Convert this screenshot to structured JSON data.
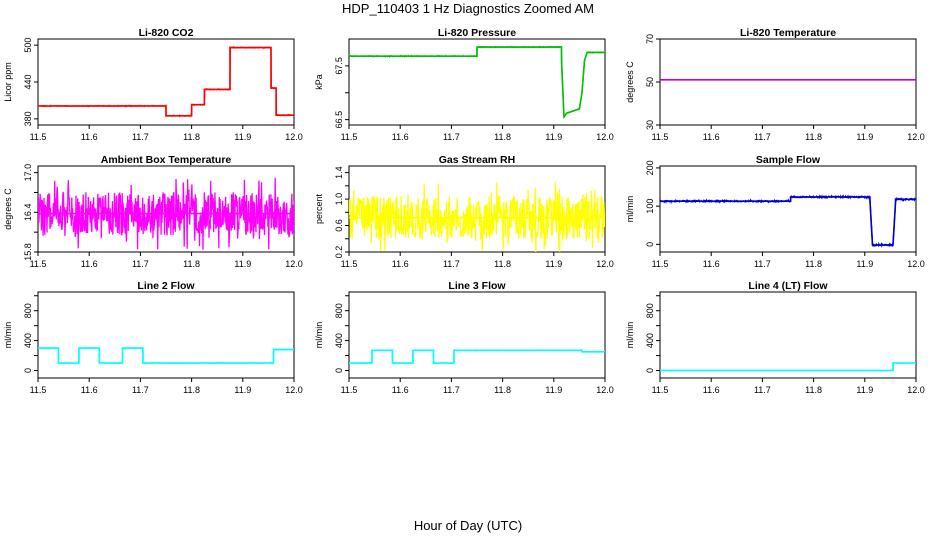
{
  "title": "HDP_110403  1 Hz Diagnostics Zoomed AM",
  "xlabel": "Hour of Day (UTC)",
  "chart_data": [
    {
      "type": "line",
      "title": "Li-820 CO2",
      "ylabel": "Licor ppm",
      "color": "#ff0000",
      "xlim": [
        11.5,
        12.0
      ],
      "ylim": [
        370,
        510
      ],
      "yticks": [
        "380",
        "440",
        "500"
      ],
      "ytick_values": [
        380,
        440,
        500
      ],
      "xticks": [
        "11.5",
        "11.6",
        "11.7",
        "11.8",
        "11.9",
        "12.0"
      ],
      "noise": 0.8,
      "series": [
        {
          "name": "CO2",
          "x": [
            11.5,
            11.75,
            11.75,
            11.8,
            11.8,
            11.825,
            11.825,
            11.875,
            11.875,
            11.955,
            11.955,
            11.965,
            11.965,
            12.0
          ],
          "y": [
            401,
            401,
            385,
            385,
            403,
            403,
            428,
            428,
            496,
            496,
            430,
            430,
            386,
            386
          ]
        }
      ]
    },
    {
      "type": "line",
      "title": "Li-820 Pressure",
      "ylabel": "kPa",
      "color": "#00c000",
      "xlim": [
        11.5,
        12.0
      ],
      "ylim": [
        66.4,
        68.0
      ],
      "yticks": [
        "66.5",
        "67.5"
      ],
      "ytick_values": [
        66.5,
        67.0,
        67.5
      ],
      "xticks": [
        "11.5",
        "11.6",
        "11.7",
        "11.8",
        "11.9",
        "12.0"
      ],
      "noise": 0.01,
      "series": [
        {
          "name": "Pressure",
          "x": [
            11.5,
            11.75,
            11.75,
            11.915,
            11.915,
            11.92,
            11.925,
            11.95,
            11.955,
            11.96,
            11.965,
            12.0
          ],
          "y": [
            67.68,
            67.68,
            67.85,
            67.85,
            67.6,
            66.55,
            66.62,
            66.7,
            67.0,
            67.6,
            67.75,
            67.75
          ]
        }
      ]
    },
    {
      "type": "line",
      "title": "Li-820 Temperature",
      "ylabel": "degrees C",
      "color": "#cc00cc",
      "xlim": [
        11.5,
        12.0
      ],
      "ylim": [
        30,
        70
      ],
      "yticks": [
        "30",
        "50",
        "70"
      ],
      "ytick_values": [
        30,
        50,
        70
      ],
      "xticks": [
        "11.5",
        "11.6",
        "11.7",
        "11.8",
        "11.9",
        "12.0"
      ],
      "noise": 0,
      "series": [
        {
          "name": "Temperature",
          "x": [
            11.5,
            12.0
          ],
          "y": [
            51,
            51
          ]
        }
      ]
    },
    {
      "type": "line",
      "title": "Ambient Box Temperature",
      "ylabel": "degrees C",
      "color": "#ff00ff",
      "xlim": [
        11.5,
        12.0
      ],
      "ylim": [
        15.8,
        17.1
      ],
      "yticks": [
        "15.8",
        "16.4",
        "17.0"
      ],
      "ytick_values": [
        15.8,
        16.1,
        16.4,
        16.7,
        17.0
      ],
      "xticks": [
        "11.5",
        "11.6",
        "11.7",
        "11.8",
        "11.9",
        "12.0"
      ],
      "noise": 0.55,
      "series": [
        {
          "name": "Ambient",
          "x": [
            11.5,
            12.0
          ],
          "y": [
            16.38,
            16.38
          ]
        }
      ]
    },
    {
      "type": "line",
      "title": "Gas Stream RH",
      "ylabel": "percent",
      "color": "#ffff00",
      "xlim": [
        11.5,
        12.0
      ],
      "ylim": [
        0.2,
        1.5
      ],
      "yticks": [
        "0.2",
        "0.6",
        "1.0",
        "1.4"
      ],
      "ytick_values": [
        0.2,
        0.4,
        0.6,
        0.8,
        1.0,
        1.2,
        1.4
      ],
      "xticks": [
        "11.5",
        "11.6",
        "11.7",
        "11.8",
        "11.9",
        "12.0"
      ],
      "noise": 0.55,
      "series": [
        {
          "name": "RH",
          "x": [
            11.5,
            12.0
          ],
          "y": [
            0.72,
            0.72
          ]
        }
      ]
    },
    {
      "type": "line",
      "title": "Sample Flow",
      "ylabel": "ml/min",
      "color": "#0000cc",
      "xlim": [
        11.5,
        12.0
      ],
      "ylim": [
        -20,
        205
      ],
      "yticks": [
        "0",
        "100",
        "200"
      ],
      "ytick_values": [
        0,
        100,
        200
      ],
      "xticks": [
        "11.5",
        "11.6",
        "11.7",
        "11.8",
        "11.9",
        "12.0"
      ],
      "noise": 3,
      "series": [
        {
          "name": "Sample Flow",
          "x": [
            11.5,
            11.755,
            11.755,
            11.91,
            11.91,
            11.915,
            11.955,
            11.96,
            11.96,
            12.0
          ],
          "y": [
            113,
            113,
            124,
            124,
            118,
            -2,
            -2,
            110,
            118,
            118
          ]
        }
      ]
    },
    {
      "type": "line",
      "title": "Line 2 Flow",
      "ylabel": "ml/min",
      "color": "#00ffff",
      "xlim": [
        11.5,
        12.0
      ],
      "ylim": [
        -100,
        1050
      ],
      "yticks": [
        "0",
        "400",
        "800"
      ],
      "ytick_values": [
        0,
        200,
        400,
        600,
        800,
        1000
      ],
      "xticks": [
        "11.5",
        "11.6",
        "11.7",
        "11.8",
        "11.9",
        "12.0"
      ],
      "noise": 4,
      "series": [
        {
          "name": "Line 2",
          "x": [
            11.5,
            11.54,
            11.54,
            11.58,
            11.58,
            11.62,
            11.62,
            11.665,
            11.665,
            11.705,
            11.705,
            11.96,
            11.96,
            12.0
          ],
          "y": [
            300,
            300,
            100,
            100,
            300,
            300,
            100,
            100,
            300,
            300,
            100,
            100,
            280,
            280
          ]
        }
      ]
    },
    {
      "type": "line",
      "title": "Line 3 Flow",
      "ylabel": "ml/min",
      "color": "#00ffff",
      "xlim": [
        11.5,
        12.0
      ],
      "ylim": [
        -100,
        1050
      ],
      "yticks": [
        "0",
        "400",
        "800"
      ],
      "ytick_values": [
        0,
        200,
        400,
        600,
        800,
        1000
      ],
      "xticks": [
        "11.5",
        "11.6",
        "11.7",
        "11.8",
        "11.9",
        "12.0"
      ],
      "noise": 4,
      "series": [
        {
          "name": "Line 3",
          "x": [
            11.5,
            11.545,
            11.545,
            11.585,
            11.585,
            11.625,
            11.625,
            11.665,
            11.665,
            11.705,
            11.705,
            11.955,
            11.955,
            12.0
          ],
          "y": [
            100,
            100,
            270,
            270,
            100,
            100,
            270,
            270,
            100,
            100,
            270,
            270,
            250,
            250
          ]
        }
      ]
    },
    {
      "type": "line",
      "title": "Line 4 (LT) Flow",
      "ylabel": "ml/min",
      "color": "#00ffff",
      "xlim": [
        11.5,
        12.0
      ],
      "ylim": [
        -100,
        1050
      ],
      "yticks": [
        "0",
        "400",
        "800"
      ],
      "ytick_values": [
        0,
        200,
        400,
        600,
        800,
        1000
      ],
      "xticks": [
        "11.5",
        "11.6",
        "11.7",
        "11.8",
        "11.9",
        "12.0"
      ],
      "noise": 2,
      "series": [
        {
          "name": "Line 4",
          "x": [
            11.5,
            11.955,
            11.955,
            12.0
          ],
          "y": [
            0,
            0,
            100,
            100
          ]
        }
      ]
    }
  ]
}
